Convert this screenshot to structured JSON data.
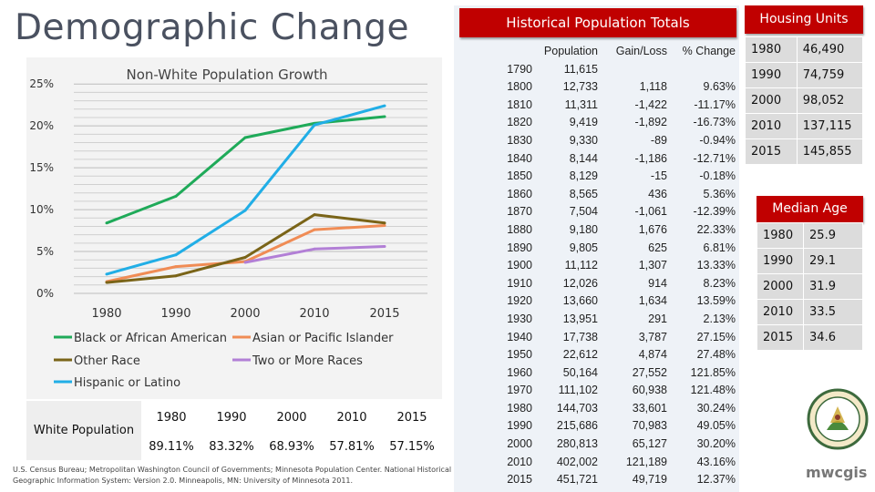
{
  "title": "Demographic Change",
  "chart_data": {
    "type": "line",
    "title": "Non-White Population Growth",
    "categories": [
      "1980",
      "1990",
      "2000",
      "2010",
      "2015"
    ],
    "y_ticks": [
      "0%",
      "5%",
      "10%",
      "15%",
      "20%",
      "25%"
    ],
    "ylim": [
      0,
      26
    ],
    "grid": true,
    "legend": "bottom",
    "series": [
      {
        "name": "Black or African American",
        "color": "#1faa59",
        "values": [
          8.4,
          11.6,
          18.6,
          20.3,
          21.1
        ]
      },
      {
        "name": "Asian or Pacific Islander",
        "color": "#f08c55",
        "values": [
          1.4,
          3.2,
          3.8,
          7.6,
          8.1
        ]
      },
      {
        "name": "Other Race",
        "color": "#7a6418",
        "values": [
          1.3,
          2.1,
          4.3,
          9.4,
          8.4
        ]
      },
      {
        "name": "Two or More Races",
        "color": "#b27fd6",
        "values": [
          null,
          null,
          3.7,
          5.3,
          5.6
        ]
      },
      {
        "name": "Hispanic or Latino",
        "color": "#21aee6",
        "values": [
          2.3,
          4.6,
          9.9,
          20.1,
          22.4
        ]
      }
    ]
  },
  "white_population": {
    "label": "White Population",
    "years": [
      "1980",
      "1990",
      "2000",
      "2010",
      "2015"
    ],
    "values": [
      "89.11%",
      "83.32%",
      "68.93%",
      "57.81%",
      "57.15%"
    ]
  },
  "source": "U.S. Census Bureau; Metropolitan Washington Council of Governments; Minnesota Population Center. National Historical Geographic Information System: Version 2.0. Minneapolis, MN: University of Minnesota 2011.",
  "historical": {
    "title": "Historical Population Totals",
    "headers": [
      "Population",
      "Gain/Loss",
      "% Change"
    ],
    "rows": [
      [
        "1790",
        "11,615",
        "",
        ""
      ],
      [
        "1800",
        "12,733",
        "1,118",
        "9.63%"
      ],
      [
        "1810",
        "11,311",
        "-1,422",
        "-11.17%"
      ],
      [
        "1820",
        "9,419",
        "-1,892",
        "-16.73%"
      ],
      [
        "1830",
        "9,330",
        "-89",
        "-0.94%"
      ],
      [
        "1840",
        "8,144",
        "-1,186",
        "-12.71%"
      ],
      [
        "1850",
        "8,129",
        "-15",
        "-0.18%"
      ],
      [
        "1860",
        "8,565",
        "436",
        "5.36%"
      ],
      [
        "1870",
        "7,504",
        "-1,061",
        "-12.39%"
      ],
      [
        "1880",
        "9,180",
        "1,676",
        "22.33%"
      ],
      [
        "1890",
        "9,805",
        "625",
        "6.81%"
      ],
      [
        "1900",
        "11,112",
        "1,307",
        "13.33%"
      ],
      [
        "1910",
        "12,026",
        "914",
        "8.23%"
      ],
      [
        "1920",
        "13,660",
        "1,634",
        "13.59%"
      ],
      [
        "1930",
        "13,951",
        "291",
        "2.13%"
      ],
      [
        "1940",
        "17,738",
        "3,787",
        "27.15%"
      ],
      [
        "1950",
        "22,612",
        "4,874",
        "27.48%"
      ],
      [
        "1960",
        "50,164",
        "27,552",
        "121.85%"
      ],
      [
        "1970",
        "111,102",
        "60,938",
        "121.48%"
      ],
      [
        "1980",
        "144,703",
        "33,601",
        "30.24%"
      ],
      [
        "1990",
        "215,686",
        "70,983",
        "49.05%"
      ],
      [
        "2000",
        "280,813",
        "65,127",
        "30.20%"
      ],
      [
        "2010",
        "402,002",
        "121,189",
        "43.16%"
      ],
      [
        "2015",
        "451,721",
        "49,719",
        "12.37%"
      ]
    ]
  },
  "housing": {
    "title": "Housing Units",
    "rows": [
      [
        "1980",
        "46,490"
      ],
      [
        "1990",
        "74,759"
      ],
      [
        "2000",
        "98,052"
      ],
      [
        "2010",
        "137,115"
      ],
      [
        "2015",
        "145,855"
      ]
    ]
  },
  "median_age": {
    "title": "Median Age",
    "rows": [
      [
        "1980",
        "25.9"
      ],
      [
        "1990",
        "29.1"
      ],
      [
        "2000",
        "31.9"
      ],
      [
        "2010",
        "33.5"
      ],
      [
        "2015",
        "34.6"
      ]
    ]
  },
  "logo_text": "mwcgis",
  "icons": {
    "seal": "county-seal-icon",
    "logo": "mwcog-gis-logo"
  }
}
